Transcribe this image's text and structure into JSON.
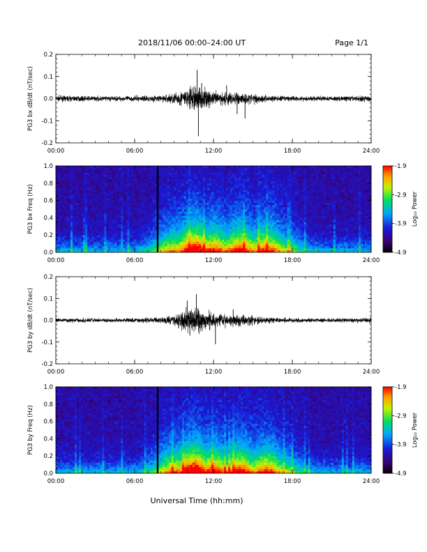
{
  "header": {
    "title": "2018/11/06  00:00–24:00 UT",
    "page": "Page 1/1"
  },
  "footer": {
    "xlabel": "Universal Time (hh:mm)"
  },
  "chart_data": [
    {
      "type": "line",
      "ylabel": "PG3 bx dB/dt (nT/sec)",
      "xlim": [
        0,
        24
      ],
      "ylim": [
        -0.2,
        0.2
      ],
      "x_ticks": [
        "00:00",
        "06:00",
        "12:00",
        "18:00",
        "24:00"
      ],
      "y_ticks": [
        "0.2",
        "0.1",
        "0.0",
        "-0.1",
        "-0.2"
      ],
      "color": "#000000",
      "envelope": {
        "hours": [
          0,
          1,
          2,
          3,
          4,
          5,
          6,
          7,
          8,
          9,
          10,
          10.5,
          11,
          11.5,
          12,
          13,
          14,
          15,
          16,
          17,
          18,
          19,
          20,
          21,
          22,
          23,
          24
        ],
        "amplitude": [
          0.012,
          0.012,
          0.011,
          0.011,
          0.011,
          0.011,
          0.012,
          0.013,
          0.014,
          0.025,
          0.045,
          0.06,
          0.05,
          0.04,
          0.03,
          0.03,
          0.028,
          0.022,
          0.016,
          0.012,
          0.011,
          0.011,
          0.011,
          0.011,
          0.011,
          0.012,
          0.014
        ]
      },
      "spikes": [
        {
          "hour": 10.75,
          "value": 0.13
        },
        {
          "hour": 10.85,
          "value": -0.17
        },
        {
          "hour": 11.1,
          "value": 0.07
        },
        {
          "hour": 13.0,
          "value": 0.06
        },
        {
          "hour": 14.4,
          "value": -0.09
        },
        {
          "hour": 13.8,
          "value": -0.07
        }
      ]
    },
    {
      "type": "heatmap",
      "ylabel": "PG3 bx Freq (Hz)",
      "xlim": [
        0,
        24
      ],
      "ylim": [
        0,
        1.0
      ],
      "x_ticks": [
        "00:00",
        "06:00",
        "12:00",
        "18:00",
        "24:00"
      ],
      "y_ticks": [
        "1.0",
        "0.8",
        "0.6",
        "0.4",
        "0.2",
        "0.0"
      ],
      "colorbar": {
        "label": "Log₁₀ Power",
        "ticks": [
          "-1.9",
          "-2.9",
          "-3.9",
          "-4.9"
        ],
        "range": [
          -4.9,
          -1.9
        ]
      },
      "data_gap_hour": 7.75,
      "activity": [
        {
          "hour": 9.0,
          "level": 0.45
        },
        {
          "hour": 10.5,
          "level": 0.75
        },
        {
          "hour": 12.0,
          "level": 0.6
        },
        {
          "hour": 14.0,
          "level": 0.65
        },
        {
          "hour": 16.0,
          "level": 0.6
        },
        {
          "hour": 17.0,
          "level": 0.35
        }
      ]
    },
    {
      "type": "line",
      "ylabel": "PG3 by dB/dt (nT/sec)",
      "xlim": [
        0,
        24
      ],
      "ylim": [
        -0.2,
        0.2
      ],
      "x_ticks": [
        "00:00",
        "06:00",
        "12:00",
        "18:00",
        "24:00"
      ],
      "y_ticks": [
        "0.2",
        "0.1",
        "0.0",
        "-0.1",
        "-0.2"
      ],
      "color": "#000000",
      "envelope": {
        "hours": [
          0,
          1,
          2,
          3,
          4,
          5,
          6,
          7,
          8,
          9,
          10,
          10.5,
          11,
          11.5,
          12,
          13,
          14,
          15,
          16,
          17,
          18,
          19,
          20,
          21,
          22,
          23,
          24
        ],
        "amplitude": [
          0.01,
          0.01,
          0.01,
          0.009,
          0.009,
          0.009,
          0.01,
          0.011,
          0.013,
          0.025,
          0.05,
          0.06,
          0.055,
          0.04,
          0.03,
          0.028,
          0.026,
          0.02,
          0.015,
          0.011,
          0.01,
          0.009,
          0.009,
          0.009,
          0.009,
          0.01,
          0.012
        ]
      },
      "spikes": [
        {
          "hour": 10.0,
          "value": 0.09
        },
        {
          "hour": 10.7,
          "value": 0.12
        },
        {
          "hour": 10.2,
          "value": -0.07
        },
        {
          "hour": 12.15,
          "value": -0.11
        },
        {
          "hour": 13.5,
          "value": 0.05
        }
      ]
    },
    {
      "type": "heatmap",
      "ylabel": "PG3 by Freq (Hz)",
      "xlim": [
        0,
        24
      ],
      "ylim": [
        0,
        1.0
      ],
      "x_ticks": [
        "00:00",
        "06:00",
        "12:00",
        "18:00",
        "24:00"
      ],
      "y_ticks": [
        "1.0",
        "0.8",
        "0.6",
        "0.4",
        "0.2",
        "0.0"
      ],
      "colorbar": {
        "label": "Log₁₀ Power",
        "ticks": [
          "-1.9",
          "-2.9",
          "-3.9",
          "-4.9"
        ],
        "range": [
          -4.9,
          -1.9
        ]
      },
      "data_gap_hour": 7.75,
      "activity": [
        {
          "hour": 9.0,
          "level": 0.5
        },
        {
          "hour": 10.5,
          "level": 0.8
        },
        {
          "hour": 12.0,
          "level": 0.65
        },
        {
          "hour": 14.0,
          "level": 0.65
        },
        {
          "hour": 16.0,
          "level": 0.6
        },
        {
          "hour": 17.0,
          "level": 0.35
        }
      ]
    }
  ]
}
